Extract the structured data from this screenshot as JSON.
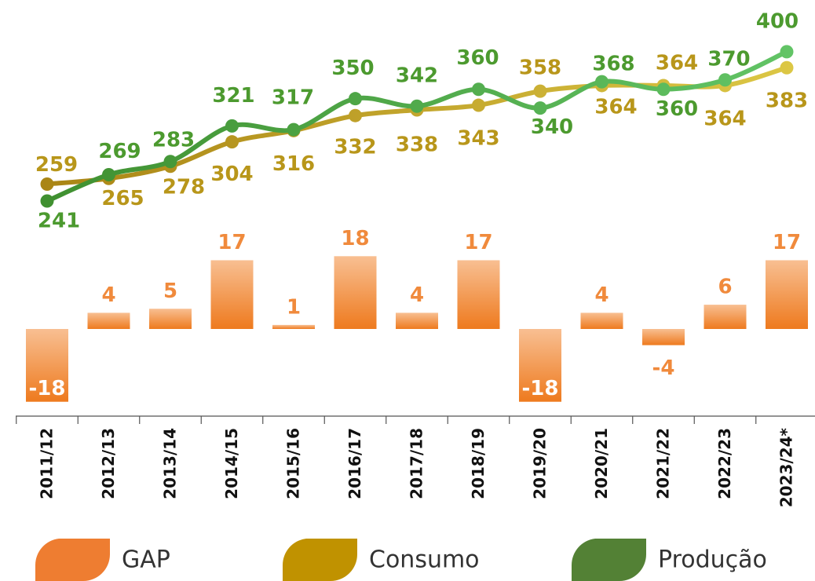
{
  "chart_data": {
    "type": "combo",
    "categories": [
      "2011/12",
      "2012/13",
      "2013/14",
      "2014/15",
      "2015/16",
      "2016/17",
      "2017/18",
      "2018/19",
      "2019/20",
      "2020/21",
      "2021/22",
      "2022/23",
      "2023/24*"
    ],
    "ylim": [
      200,
      420
    ],
    "y2lim": [
      -20,
      20
    ],
    "series": [
      {
        "name": "GAP",
        "type": "bar",
        "axis": "y2",
        "color": "#ee7d31",
        "values": [
          -18,
          4,
          5,
          17,
          1,
          18,
          4,
          17,
          -18,
          4,
          -4,
          6,
          17
        ]
      },
      {
        "name": "Consumo",
        "type": "line",
        "color": "#c09200",
        "values": [
          259,
          265,
          278,
          304,
          316,
          332,
          338,
          343,
          358,
          364,
          364,
          364,
          383
        ]
      },
      {
        "name": "Produção",
        "type": "line",
        "color": "#538135",
        "values": [
          241,
          269,
          283,
          321,
          317,
          350,
          342,
          360,
          340,
          368,
          360,
          370,
          400
        ]
      }
    ]
  }
}
